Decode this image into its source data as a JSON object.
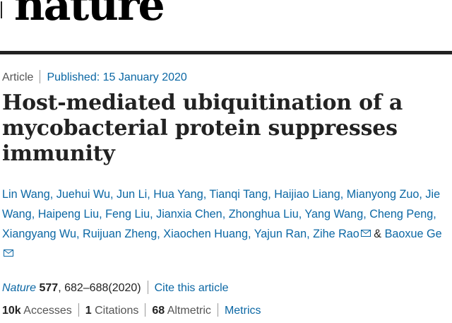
{
  "masthead": {
    "logo_text": "nature"
  },
  "article": {
    "type": "Article",
    "published_label": "Published: 15 January 2020",
    "title": "Host-mediated ubiquitination of a mycobacterial protein suppresses immunity",
    "authors": [
      "Lin Wang",
      "Juehui Wu",
      "Jun Li",
      "Hua Yang",
      "Tianqi Tang",
      "Haijiao Liang",
      "Mianyong Zuo",
      "Jie Wang",
      "Haipeng Liu",
      "Feng Liu",
      "Jianxia Chen",
      "Zhonghua Liu",
      "Yang Wang",
      "Cheng Peng",
      "Xiangyang Wu",
      "Ruijuan Zheng",
      "Xiaochen Huang",
      "Yajun Ran",
      "Zihe Rao",
      "Baoxue Ge"
    ],
    "authors_ampersand": "&",
    "citation": {
      "journal": "Nature",
      "volume": "577",
      "pages": ", 682–688(2020)",
      "cite_link": "Cite this article"
    },
    "metrics": {
      "accesses_count": "10k",
      "accesses_label": "Accesses",
      "citations_count": "1",
      "citations_label": "Citations",
      "altmetric_count": "68",
      "altmetric_label": "Altmetric",
      "metrics_link": "Metrics"
    }
  },
  "colors": {
    "link": "#0b67a4",
    "text": "#222222",
    "muted": "#555555"
  },
  "icons": {
    "mail": "mail-icon"
  }
}
